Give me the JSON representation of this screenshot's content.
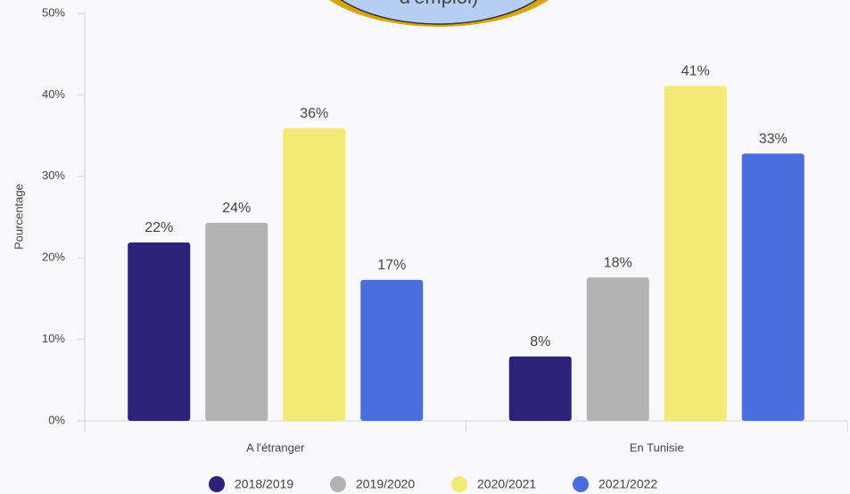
{
  "chart_data": {
    "type": "bar",
    "annotation": "d'emploi)",
    "y_label": "Pourcentage",
    "categories": [
      "A l'étranger",
      "En Tunisie"
    ],
    "series": [
      {
        "name": "2018/2019",
        "color": "#2e2278",
        "values": [
          21.9,
          7.9
        ],
        "value_labels": [
          "22%",
          "8%"
        ]
      },
      {
        "name": "2019/2020",
        "color": "#b3b3b3",
        "values": [
          24.3,
          17.6
        ],
        "value_labels": [
          "24%",
          "18%"
        ]
      },
      {
        "name": "2020/2021",
        "color": "#f2ea74",
        "values": [
          35.9,
          41.1
        ],
        "value_labels": [
          "36%",
          "41%"
        ]
      },
      {
        "name": "2021/2022",
        "color": "#4a6fdc",
        "values": [
          17.3,
          32.8
        ],
        "value_labels": [
          "17%",
          "33%"
        ]
      }
    ],
    "ylim": [
      0,
      50
    ],
    "yticks": [
      {
        "value": 0,
        "label": "0%"
      },
      {
        "value": 10,
        "label": "10%"
      },
      {
        "value": 20,
        "label": "20%"
      },
      {
        "value": 30,
        "label": "30%"
      },
      {
        "value": 40,
        "label": "40%"
      },
      {
        "value": 50,
        "label": "50%"
      }
    ],
    "grid": false,
    "legend": "bottom"
  }
}
